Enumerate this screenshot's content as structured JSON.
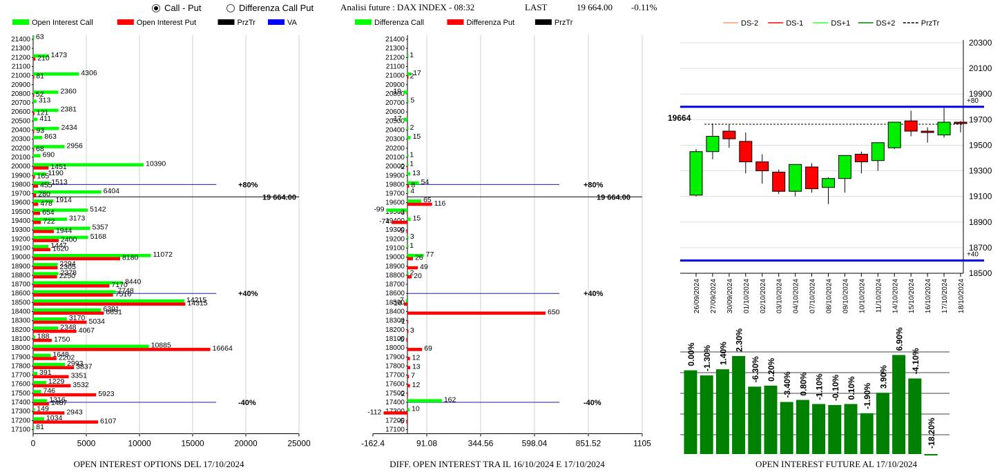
{
  "header": {
    "radio_call_put": "Call - Put",
    "radio_diff": "Differenza Call Put",
    "title": "Analisi future : DAX INDEX - 08:32",
    "last_label": "LAST",
    "last_value": "19 664.00",
    "last_change": "-0.11%"
  },
  "colors": {
    "call": "#00ff00",
    "put": "#ff0000",
    "prztr": "#000000",
    "va": "#0000ff",
    "candle_up": "#00ee00",
    "candle_down": "#ff0000",
    "oi_bar": "#008000"
  },
  "chart_data": [
    {
      "type": "bar",
      "orientation": "horizontal",
      "title": "OPEN INTEREST OPTIONS DEL 17/10/2024",
      "legend": [
        "Open Interest Call",
        "Open Interest Put",
        "PrzTr",
        "VA"
      ],
      "strikes": [
        21400,
        21300,
        21200,
        21100,
        21000,
        20900,
        20800,
        20700,
        20600,
        20500,
        20400,
        20300,
        20200,
        20100,
        20000,
        19900,
        19800,
        19700,
        19600,
        19500,
        19400,
        19300,
        19200,
        19100,
        19000,
        18900,
        18800,
        18700,
        18600,
        18500,
        18400,
        18300,
        18200,
        18100,
        18000,
        17900,
        17800,
        17700,
        17600,
        17500,
        17400,
        17300,
        17200,
        17100
      ],
      "series": [
        {
          "name": "Open Interest Call",
          "values": [
            63,
            null,
            1473,
            null,
            4306,
            null,
            2360,
            313,
            2381,
            411,
            2434,
            863,
            2956,
            690,
            10390,
            1190,
            1513,
            6404,
            1914,
            5142,
            3173,
            5357,
            5168,
            1447,
            11072,
            2294,
            2378,
            8440,
            7748,
            14215,
            6391,
            3170,
            2348,
            188,
            10885,
            1648,
            2993,
            391,
            1229,
            746,
            1316,
            149,
            1034,
            81
          ]
        },
        {
          "name": "Open Interest Put",
          "values": [
            null,
            null,
            210,
            null,
            81,
            null,
            52,
            null,
            121,
            null,
            93,
            null,
            68,
            null,
            1451,
            165,
            455,
            280,
            478,
            654,
            722,
            1944,
            2400,
            1620,
            8180,
            2305,
            2250,
            7170,
            7516,
            14315,
            6651,
            5034,
            4067,
            1750,
            16664,
            2202,
            3837,
            3351,
            3532,
            5923,
            1487,
            2943,
            6107,
            null
          ]
        }
      ],
      "xticks": [
        "0",
        "5000",
        "10000",
        "15000",
        "20000",
        "25000"
      ],
      "xlim": [
        0,
        25000
      ],
      "lines": [
        {
          "strike": 19800,
          "label": "+80%"
        },
        {
          "strike": 19664,
          "label": "19 664.00"
        },
        {
          "strike": 18600,
          "label": "+40%"
        },
        {
          "strike": 17400,
          "label": "-40%"
        }
      ]
    },
    {
      "type": "bar",
      "orientation": "horizontal",
      "title": "DIFF. OPEN INTEREST TRA IL 16/10/2024 E 17/10/2024",
      "legend": [
        "Differenza Call",
        "Differenza Put",
        "PrzTr"
      ],
      "strikes": [
        21400,
        21300,
        21200,
        21100,
        21000,
        20900,
        20800,
        20700,
        20600,
        20500,
        20400,
        20300,
        20200,
        20100,
        20000,
        19900,
        19800,
        19700,
        19600,
        19500,
        19400,
        19300,
        19200,
        19100,
        19000,
        18900,
        18800,
        18700,
        18600,
        18500,
        18400,
        18300,
        18200,
        18100,
        18000,
        17900,
        17800,
        17700,
        17600,
        17500,
        17400,
        17300,
        17200,
        17100
      ],
      "series": [
        {
          "name": "Differenza Call",
          "values": [
            null,
            null,
            1,
            null,
            17,
            null,
            -19,
            5,
            null,
            -17,
            2,
            15,
            null,
            1,
            1,
            13,
            54,
            4,
            65,
            -99,
            15,
            null,
            3,
            1,
            77,
            null,
            2,
            null,
            null,
            -7,
            null,
            null,
            null,
            null,
            null,
            null,
            null,
            null,
            null,
            null,
            162,
            10,
            null,
            null
          ]
        },
        {
          "name": "Differenza Put",
          "values": [
            null,
            null,
            null,
            null,
            2,
            null,
            null,
            null,
            null,
            null,
            null,
            null,
            null,
            null,
            -2,
            null,
            8,
            null,
            116,
            -3,
            -74,
            -5,
            null,
            null,
            26,
            49,
            20,
            null,
            null,
            -16,
            650,
            -1,
            3,
            -5,
            69,
            12,
            13,
            7,
            12,
            -2,
            null,
            -112,
            -5,
            null
          ]
        }
      ],
      "xticks": [
        "-162.4",
        "91.08",
        "344.56",
        "598.04",
        "851.52",
        "1105"
      ],
      "xlim": [
        -162.4,
        1105
      ],
      "lines": [
        {
          "strike": 19800,
          "label": "+80%"
        },
        {
          "strike": 19664,
          "label": "19 664.00"
        },
        {
          "strike": 18600,
          "label": "+40%"
        },
        {
          "strike": 17400,
          "label": "-40%"
        }
      ]
    },
    {
      "type": "candlestick",
      "legend": [
        "DS-2",
        "DS-1",
        "DS+1",
        "DS+2",
        "PrzTr"
      ],
      "dates": [
        "26/09/2024",
        "27/09/2024",
        "30/09/2024",
        "01/10/2024",
        "02/10/2024",
        "03/10/2024",
        "04/10/2024",
        "07/10/2024",
        "08/10/2024",
        "09/10/2024",
        "10/10/2024",
        "11/10/2024",
        "14/10/2024",
        "15/10/2024",
        "16/10/2024",
        "17/10/2024",
        "18/10/2024"
      ],
      "open": [
        19110,
        19450,
        19610,
        19530,
        19370,
        19290,
        19140,
        19330,
        19170,
        19240,
        19430,
        19380,
        19480,
        19690,
        19610,
        19580,
        19680
      ],
      "high": [
        19470,
        19670,
        19660,
        19600,
        19430,
        19310,
        19340,
        19360,
        19250,
        19420,
        19450,
        19520,
        19680,
        19770,
        19640,
        19790,
        19690
      ],
      "low": [
        19100,
        19390,
        19480,
        19280,
        19200,
        19120,
        19100,
        19130,
        19040,
        19130,
        19280,
        19300,
        19470,
        19570,
        19520,
        19560,
        19600
      ],
      "close": [
        19450,
        19570,
        19550,
        19370,
        19300,
        19140,
        19350,
        19160,
        19240,
        19420,
        19370,
        19520,
        19680,
        19610,
        19600,
        19680,
        19670
      ],
      "yticks": [
        "20300",
        "20100",
        "19900",
        "19700",
        "19500",
        "19300",
        "19100",
        "18900",
        "18700",
        "18500"
      ],
      "ylim": [
        18500,
        20300
      ],
      "price_label": "19664",
      "price": 19664,
      "bands": [
        {
          "value": 19800,
          "label": "+80"
        },
        {
          "value": 18600,
          "label": "+40"
        }
      ]
    },
    {
      "type": "bar",
      "title": "OPEN INTEREST FUTURE AL 17/10/2024",
      "bar_values": [
        82,
        77,
        83,
        96,
        66,
        67,
        51,
        53,
        49,
        48,
        49,
        40,
        60,
        97,
        74,
        -1
      ],
      "labels": [
        "0.00%",
        "-1.30%",
        "1.40%",
        "2.30%",
        "-6.30%",
        "0.20%",
        "-3.40%",
        "0.80%",
        "-1.10%",
        "-0.10%",
        "0.10%",
        "-1.90%",
        "3.90%",
        "6.90%",
        "-4.10%",
        "-18.20%"
      ]
    }
  ]
}
